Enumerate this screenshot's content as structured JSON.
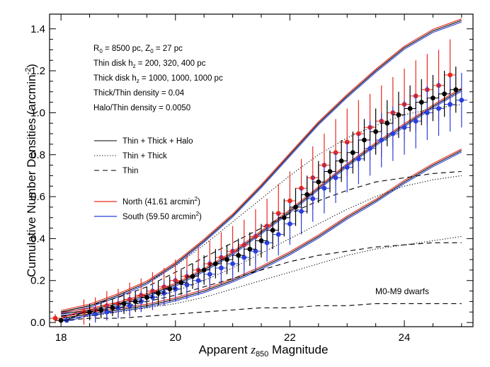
{
  "chart_data": {
    "type": "line",
    "xlabel_pre": "Apparent ",
    "xlabel_var": "z",
    "xlabel_sub": "850",
    "xlabel_post": " Magnitude",
    "ylabel_pre": "Cumulative Number Densities (arcmin",
    "ylabel_sup": "-2",
    "ylabel_post": ")",
    "xlim": [
      17.8,
      25.2
    ],
    "ylim": [
      -0.02,
      1.47
    ],
    "x_ticks": [
      18,
      20,
      22,
      24
    ],
    "x_tick_labels": [
      "18",
      "20",
      "22",
      "24"
    ],
    "y_ticks": [
      0.0,
      0.2,
      0.4,
      0.6,
      0.8,
      1.0,
      1.2,
      1.4
    ],
    "y_tick_labels": [
      "0.0",
      "0.2",
      "0.4",
      "0.6",
      "0.8",
      "1.0",
      "1.2",
      "1.4"
    ],
    "params": [
      {
        "pre": "R",
        "sub": "0",
        "mid": " = 8500 pc, Z",
        "sub2": "0",
        "post": " = 27 pc"
      },
      {
        "pre": "Thin disk h",
        "sub": "z",
        "mid": " = 200, 320, 400 pc",
        "sub2": "",
        "post": ""
      },
      {
        "pre": "Thick disk h",
        "sub": "z",
        "mid": " = 1000, 1000, 1000 pc",
        "sub2": "",
        "post": ""
      },
      {
        "pre": "Thick/Thin density = 0.04",
        "sub": "",
        "mid": "",
        "sub2": "",
        "post": ""
      },
      {
        "pre": "Halo/Thin density = 0.0050",
        "sub": "",
        "mid": "",
        "sub2": "",
        "post": ""
      }
    ],
    "legend_styles": [
      {
        "label": "Thin + Thick + Halo",
        "dash": "solid"
      },
      {
        "label": "Thin + Thick",
        "dash": "dotted"
      },
      {
        "label": "Thin",
        "dash": "dashed"
      }
    ],
    "legend_fields": [
      {
        "pre": "North (41.61 arcmin",
        "sup": "2",
        "post": ")",
        "color": "#e8281e"
      },
      {
        "pre": "South (59.50 arcmin",
        "sup": "2",
        "post": ")",
        "color": "#2b3fd8"
      }
    ],
    "annotation": "M0-M9 dwarfs",
    "colors": {
      "north": "#e8281e",
      "south": "#2b3fd8",
      "total": "#000000"
    },
    "series": [
      {
        "name": "North",
        "color": "#e8281e",
        "x": [
          17.9,
          18.4,
          18.6,
          18.8,
          19.0,
          19.2,
          19.4,
          19.6,
          19.8,
          20.0,
          20.2,
          20.4,
          20.6,
          20.8,
          21.0,
          21.2,
          21.4,
          21.6,
          21.8,
          22.0,
          22.2,
          22.4,
          22.6,
          22.8,
          23.0,
          23.2,
          23.4,
          23.6,
          23.8,
          24.0,
          24.2,
          24.4,
          24.6,
          24.8
        ],
        "y": [
          0.02,
          0.05,
          0.06,
          0.08,
          0.09,
          0.11,
          0.13,
          0.15,
          0.17,
          0.2,
          0.22,
          0.25,
          0.28,
          0.31,
          0.34,
          0.37,
          0.41,
          0.46,
          0.52,
          0.58,
          0.64,
          0.69,
          0.75,
          0.81,
          0.86,
          0.9,
          0.93,
          0.96,
          1.0,
          1.04,
          1.08,
          1.11,
          1.13,
          1.18
        ],
        "err": [
          0.02,
          0.06,
          0.06,
          0.07,
          0.07,
          0.08,
          0.08,
          0.09,
          0.09,
          0.1,
          0.1,
          0.11,
          0.11,
          0.12,
          0.12,
          0.12,
          0.13,
          0.13,
          0.14,
          0.14,
          0.14,
          0.15,
          0.15,
          0.16,
          0.16,
          0.16,
          0.16,
          0.17,
          0.17,
          0.17,
          0.17,
          0.17,
          0.17,
          0.17
        ]
      },
      {
        "name": "South",
        "color": "#2b3fd8",
        "x": [
          18.1,
          18.6,
          18.8,
          19.0,
          19.2,
          19.4,
          19.6,
          19.8,
          20.0,
          20.2,
          20.4,
          20.6,
          20.8,
          21.0,
          21.2,
          21.4,
          21.6,
          21.8,
          22.0,
          22.2,
          22.4,
          22.6,
          22.8,
          23.0,
          23.2,
          23.4,
          23.6,
          23.8,
          24.0,
          24.2,
          24.4,
          24.6,
          24.8,
          25.0
        ],
        "y": [
          0.01,
          0.04,
          0.05,
          0.07,
          0.08,
          0.1,
          0.12,
          0.14,
          0.16,
          0.18,
          0.2,
          0.23,
          0.26,
          0.28,
          0.31,
          0.34,
          0.38,
          0.42,
          0.47,
          0.53,
          0.59,
          0.64,
          0.69,
          0.74,
          0.78,
          0.83,
          0.87,
          0.9,
          0.93,
          0.96,
          1.0,
          1.02,
          1.04,
          1.06
        ],
        "err": [
          0.01,
          0.04,
          0.04,
          0.05,
          0.05,
          0.05,
          0.06,
          0.06,
          0.06,
          0.07,
          0.07,
          0.07,
          0.08,
          0.08,
          0.08,
          0.09,
          0.09,
          0.1,
          0.1,
          0.11,
          0.11,
          0.12,
          0.12,
          0.12,
          0.12,
          0.13,
          0.13,
          0.13,
          0.13,
          0.13,
          0.13,
          0.13,
          0.13,
          0.13
        ]
      },
      {
        "name": "Total",
        "color": "#000000",
        "x": [
          18.0,
          18.5,
          18.7,
          18.9,
          19.1,
          19.3,
          19.5,
          19.7,
          19.9,
          20.1,
          20.3,
          20.5,
          20.7,
          20.9,
          21.1,
          21.3,
          21.5,
          21.7,
          21.9,
          22.1,
          22.3,
          22.5,
          22.7,
          22.9,
          23.1,
          23.3,
          23.5,
          23.7,
          23.9,
          24.1,
          24.3,
          24.5,
          24.7,
          24.9
        ],
        "y": [
          0.01,
          0.05,
          0.06,
          0.07,
          0.09,
          0.1,
          0.12,
          0.14,
          0.16,
          0.19,
          0.22,
          0.25,
          0.28,
          0.3,
          0.32,
          0.35,
          0.39,
          0.44,
          0.5,
          0.55,
          0.61,
          0.67,
          0.72,
          0.77,
          0.81,
          0.87,
          0.91,
          0.95,
          0.99,
          1.02,
          1.05,
          1.07,
          1.09,
          1.11
        ],
        "err": [
          0.01,
          0.04,
          0.04,
          0.04,
          0.05,
          0.05,
          0.05,
          0.06,
          0.06,
          0.06,
          0.06,
          0.07,
          0.07,
          0.07,
          0.08,
          0.08,
          0.08,
          0.09,
          0.09,
          0.09,
          0.09,
          0.1,
          0.1,
          0.1,
          0.1,
          0.1,
          0.11,
          0.11,
          0.11,
          0.11,
          0.11,
          0.11,
          0.11,
          0.11
        ]
      }
    ],
    "model_curves": [
      {
        "style": "solid",
        "group": "upper",
        "x": [
          18.0,
          18.5,
          19.0,
          19.5,
          20.0,
          20.5,
          21.0,
          21.5,
          22.0,
          22.5,
          23.0,
          23.5,
          24.0,
          24.5,
          25.0
        ],
        "y": [
          0.05,
          0.08,
          0.13,
          0.19,
          0.28,
          0.39,
          0.51,
          0.65,
          0.8,
          0.95,
          1.08,
          1.2,
          1.31,
          1.39,
          1.44
        ]
      },
      {
        "style": "solid",
        "group": "middle",
        "x": [
          18.0,
          18.5,
          19.0,
          19.5,
          20.0,
          20.5,
          21.0,
          21.5,
          22.0,
          22.5,
          23.0,
          23.5,
          24.0,
          24.5,
          25.0
        ],
        "y": [
          0.04,
          0.06,
          0.09,
          0.13,
          0.18,
          0.25,
          0.33,
          0.43,
          0.53,
          0.64,
          0.75,
          0.85,
          0.94,
          1.03,
          1.11
        ]
      },
      {
        "style": "solid",
        "group": "lower",
        "x": [
          18.0,
          18.5,
          19.0,
          19.5,
          20.0,
          20.5,
          21.0,
          21.5,
          22.0,
          22.5,
          23.0,
          23.5,
          24.0,
          24.5,
          25.0
        ],
        "y": [
          0.02,
          0.04,
          0.06,
          0.08,
          0.11,
          0.15,
          0.2,
          0.26,
          0.33,
          0.41,
          0.5,
          0.58,
          0.67,
          0.75,
          0.82
        ]
      },
      {
        "style": "dotted",
        "group": "upper",
        "x": [
          18.0,
          18.5,
          19.0,
          19.5,
          20.0,
          20.5,
          21.0,
          21.5,
          22.0,
          22.5,
          23.0,
          23.5,
          24.0,
          24.5,
          25.0
        ],
        "y": [
          0.05,
          0.08,
          0.13,
          0.19,
          0.27,
          0.37,
          0.48,
          0.59,
          0.7,
          0.8,
          0.88,
          0.94,
          0.99,
          1.02,
          1.04
        ]
      },
      {
        "style": "dotted",
        "group": "middle",
        "x": [
          18.0,
          18.5,
          19.0,
          19.5,
          20.0,
          20.5,
          21.0,
          21.5,
          22.0,
          22.5,
          23.0,
          23.5,
          24.0,
          24.5,
          25.0
        ],
        "y": [
          0.03,
          0.05,
          0.08,
          0.11,
          0.15,
          0.2,
          0.26,
          0.33,
          0.4,
          0.47,
          0.54,
          0.6,
          0.65,
          0.68,
          0.7
        ]
      },
      {
        "style": "dotted",
        "group": "lower",
        "x": [
          18.0,
          18.5,
          19.0,
          19.5,
          20.0,
          20.5,
          21.0,
          21.5,
          22.0,
          22.5,
          23.0,
          23.5,
          24.0,
          24.5,
          25.0
        ],
        "y": [
          0.02,
          0.03,
          0.05,
          0.07,
          0.09,
          0.12,
          0.16,
          0.2,
          0.24,
          0.28,
          0.32,
          0.35,
          0.37,
          0.39,
          0.41
        ]
      },
      {
        "style": "dashed",
        "group": "upper",
        "x": [
          18.0,
          18.5,
          19.0,
          19.5,
          20.0,
          20.5,
          21.0,
          21.5,
          22.0,
          22.5,
          23.0,
          23.5,
          24.0,
          24.5,
          25.0
        ],
        "y": [
          0.05,
          0.08,
          0.12,
          0.17,
          0.24,
          0.31,
          0.38,
          0.45,
          0.52,
          0.58,
          0.63,
          0.67,
          0.69,
          0.71,
          0.72
        ]
      },
      {
        "style": "dashed",
        "group": "middle",
        "x": [
          18.0,
          18.5,
          19.0,
          19.5,
          20.0,
          20.5,
          21.0,
          21.5,
          22.0,
          22.5,
          23.0,
          23.5,
          24.0,
          24.5,
          25.0
        ],
        "y": [
          0.03,
          0.05,
          0.07,
          0.1,
          0.13,
          0.17,
          0.21,
          0.25,
          0.29,
          0.32,
          0.34,
          0.36,
          0.37,
          0.38,
          0.38
        ]
      },
      {
        "style": "dashed",
        "group": "lower",
        "x": [
          18.0,
          18.5,
          19.0,
          19.5,
          20.0,
          20.5,
          21.0,
          21.5,
          22.0,
          22.5,
          23.0,
          23.5,
          24.0,
          24.5,
          25.0
        ],
        "y": [
          0.01,
          0.02,
          0.02,
          0.03,
          0.04,
          0.05,
          0.06,
          0.07,
          0.07,
          0.08,
          0.08,
          0.09,
          0.09,
          0.09,
          0.09
        ]
      }
    ]
  }
}
